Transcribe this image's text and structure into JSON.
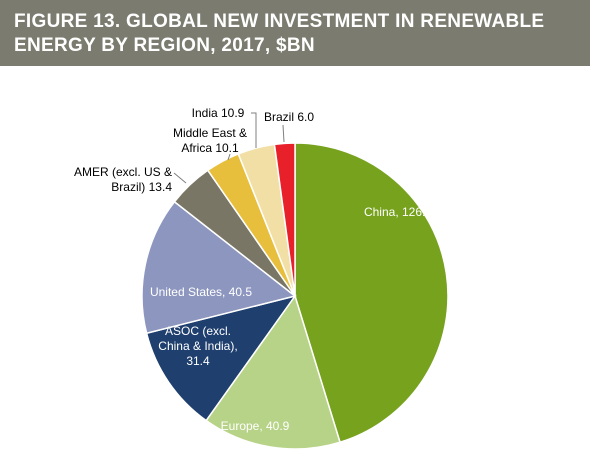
{
  "header": {
    "title_line1": "FIGURE 13. GLOBAL NEW INVESTMENT IN RENEWABLE",
    "title_line2": "ENERGY BY REGION, 2017, $BN"
  },
  "chart_data": {
    "type": "pie",
    "title": "FIGURE 13. GLOBAL NEW INVESTMENT IN RENEWABLE ENERGY BY REGION, 2017, $BN",
    "unit": "$BN",
    "slices": [
      {
        "label": "China",
        "value": 126.6,
        "color": "#76a21e",
        "label_lines": [
          "China, 126.6"
        ]
      },
      {
        "label": "Europe",
        "value": 40.9,
        "color": "#b7d387",
        "label_lines": [
          "Europe, 40.9"
        ]
      },
      {
        "label": "ASOC (excl. China & India)",
        "value": 31.4,
        "color": "#1f3f6e",
        "label_lines": [
          "ASOC (excl.",
          "China & India),",
          "31.4"
        ]
      },
      {
        "label": "United States",
        "value": 40.5,
        "color": "#8d96bf",
        "label_lines": [
          "United States, 40.5"
        ]
      },
      {
        "label": "AMER (excl. US & Brazil)",
        "value": 13.4,
        "color": "#7a7665",
        "label_lines": [
          "AMER (excl. US &",
          "Brazil) 13.4"
        ]
      },
      {
        "label": "Middle East & Africa",
        "value": 10.1,
        "color": "#e8bf3c",
        "label_lines": [
          "Middle East &",
          "Africa 10.1"
        ]
      },
      {
        "label": "India",
        "value": 10.9,
        "color": "#f2dfa6",
        "label_lines": [
          "India 10.9"
        ]
      },
      {
        "label": "Brazil",
        "value": 6.0,
        "color": "#e8202a",
        "label_lines": [
          "Brazil 6.0"
        ]
      }
    ]
  }
}
